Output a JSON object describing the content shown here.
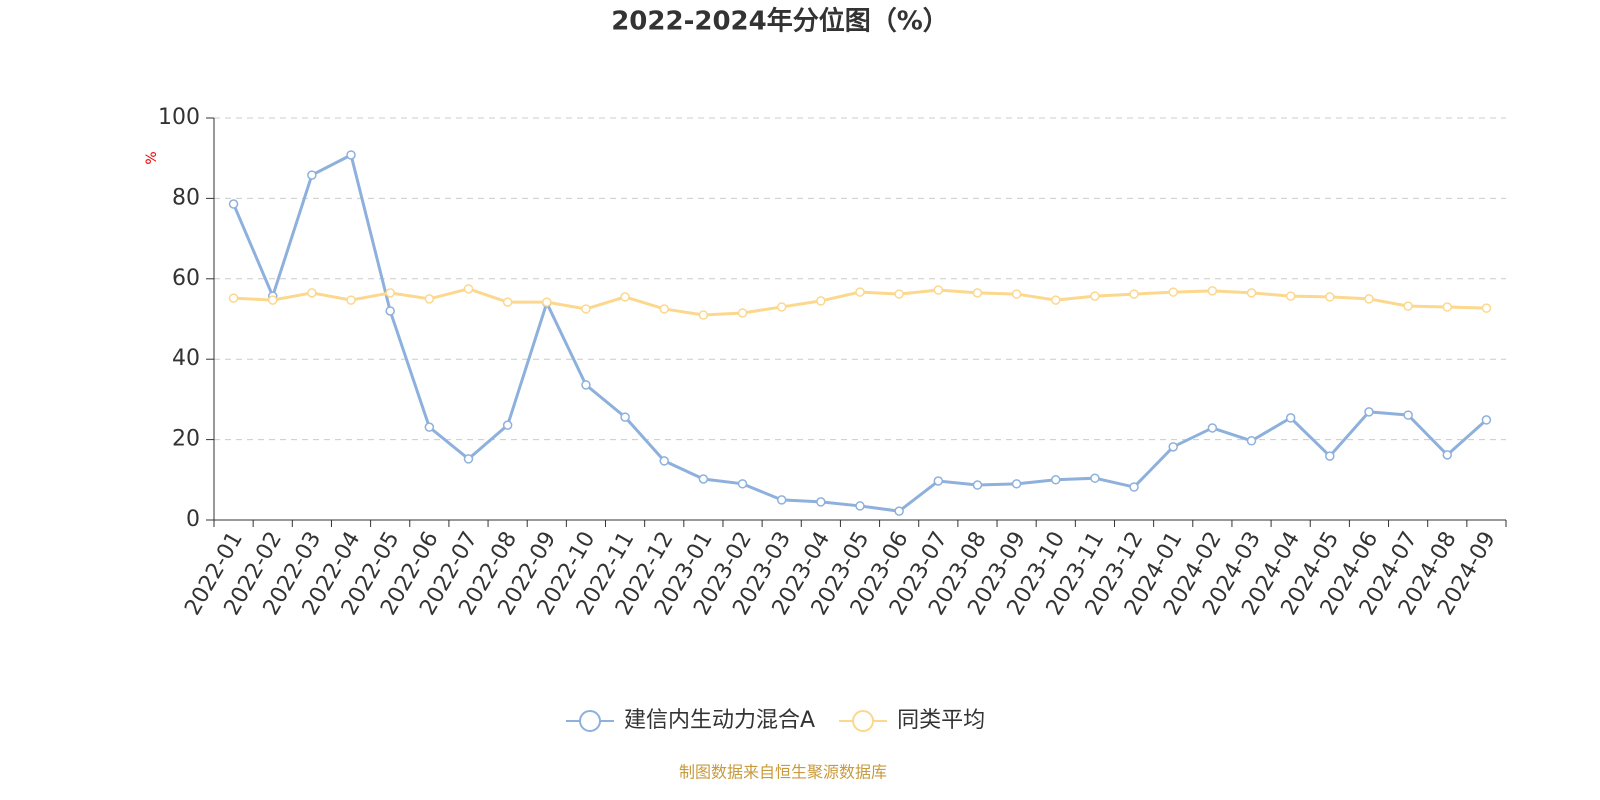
{
  "chart_data": {
    "type": "line",
    "title": "2022-2024年分位图（%）",
    "y_label": "%",
    "categories": [
      "2022-01",
      "2022-02",
      "2022-03",
      "2022-04",
      "2022-05",
      "2022-06",
      "2022-07",
      "2022-08",
      "2022-09",
      "2022-10",
      "2022-11",
      "2022-12",
      "2023-01",
      "2023-02",
      "2023-03",
      "2023-04",
      "2023-05",
      "2023-06",
      "2023-07",
      "2023-08",
      "2023-09",
      "2023-10",
      "2023-11",
      "2023-12",
      "2024-01",
      "2024-02",
      "2024-03",
      "2024-04",
      "2024-05",
      "2024-06",
      "2024-07",
      "2024-08",
      "2024-09"
    ],
    "series": [
      {
        "name": "建信内生动力混合A",
        "color": "#8eb0dc",
        "values": [
          78.6,
          55.7,
          85.8,
          90.8,
          52.0,
          23.1,
          15.2,
          23.6,
          54.0,
          33.6,
          25.6,
          14.7,
          10.2,
          9.0,
          5.0,
          4.5,
          3.5,
          2.2,
          9.7,
          8.7,
          9.0,
          10.0,
          10.4,
          8.2,
          18.2,
          22.9,
          19.7,
          25.4,
          15.9,
          26.9,
          26.1,
          16.2,
          24.9
        ]
      },
      {
        "name": "同类平均",
        "color": "#fcd88e",
        "values": [
          55.2,
          54.7,
          56.5,
          54.7,
          56.5,
          55.0,
          57.5,
          54.2,
          54.2,
          52.5,
          55.5,
          52.5,
          51.0,
          51.5,
          53.0,
          54.5,
          56.7,
          56.2,
          57.2,
          56.5,
          56.2,
          54.7,
          55.7,
          56.2,
          56.7,
          57.0,
          56.5,
          55.7,
          55.5,
          55.0,
          53.2,
          53.0,
          52.7
        ]
      }
    ],
    "ylim": [
      0,
      100
    ],
    "yticks": [
      0,
      20,
      40,
      60,
      80,
      100
    ],
    "grid": true,
    "source": "制图数据来自恒生聚源数据库"
  }
}
